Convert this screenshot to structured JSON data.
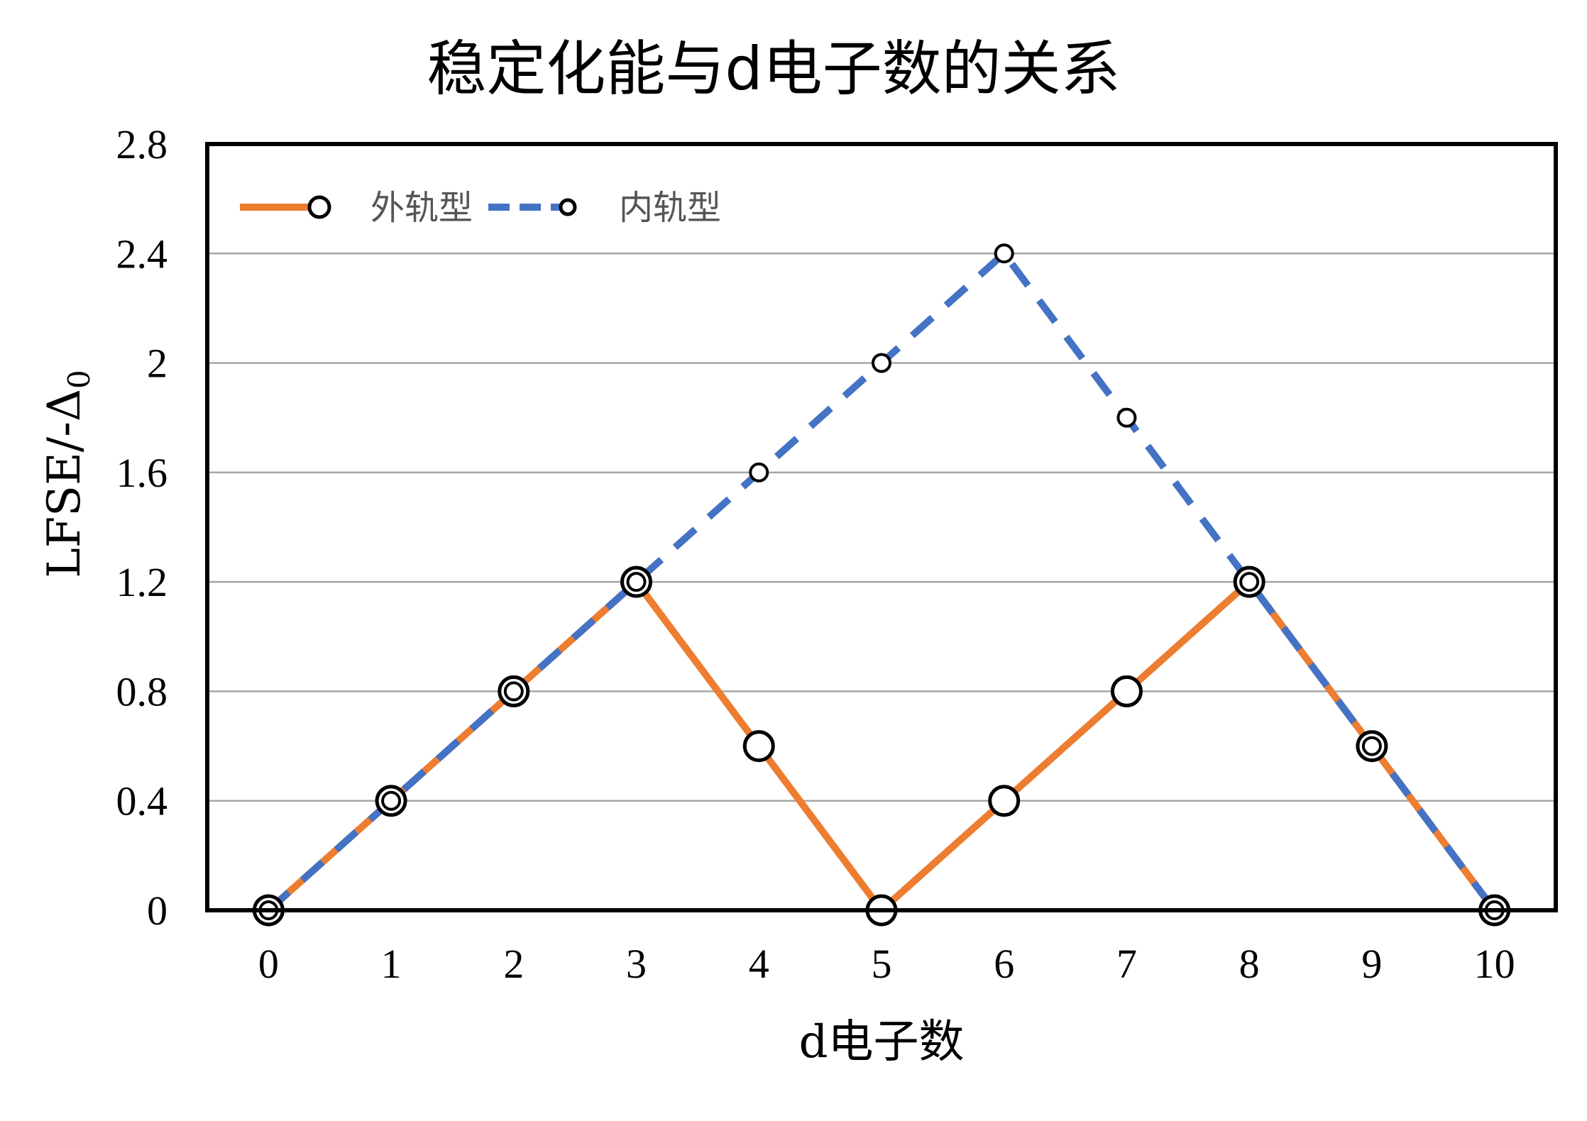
{
  "chart_data": {
    "type": "line",
    "title": "稳定化能与d电子数的关系",
    "xlabel": "d电子数",
    "ylabel_main": "LFSE/-Δ",
    "ylabel_sub": "0",
    "x": [
      0,
      1,
      2,
      3,
      4,
      5,
      6,
      7,
      8,
      9,
      10
    ],
    "ylim": [
      0,
      2.8
    ],
    "yticks": [
      "0",
      "0.4",
      "0.8",
      "1.2",
      "1.6",
      "2",
      "2.4",
      "2.8"
    ],
    "grid": true,
    "legend_position": "top-left",
    "series": [
      {
        "name": "外轨型",
        "color": "#ed7d31",
        "dash": "solid",
        "marker": "large-circle",
        "values": [
          0,
          0.4,
          0.8,
          1.2,
          0.6,
          0,
          0.4,
          0.8,
          1.2,
          0.6,
          0
        ]
      },
      {
        "name": "内轨型",
        "color": "#4472c4",
        "dash": "dashed",
        "marker": "small-circle",
        "values": [
          0,
          0.4,
          0.8,
          1.2,
          1.6,
          2.0,
          2.4,
          1.8,
          1.2,
          0.6,
          0
        ]
      }
    ]
  }
}
